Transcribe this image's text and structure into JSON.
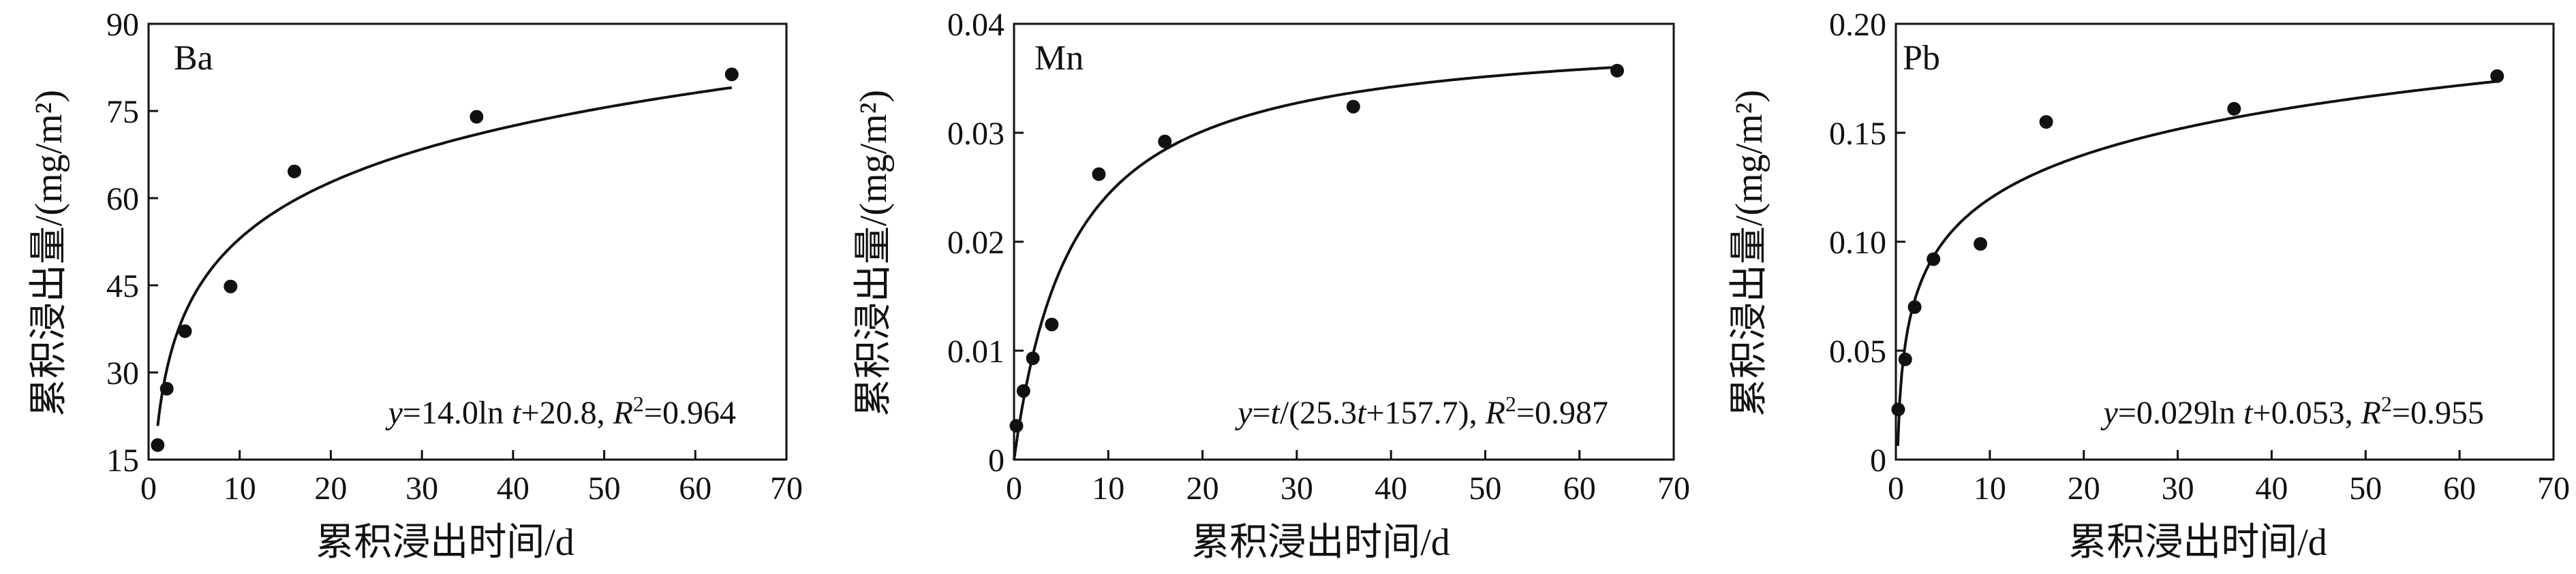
{
  "colors": {
    "ink": "#111111",
    "background": "#ffffff"
  },
  "chart_data": [
    {
      "type": "scatter",
      "panel_label": "Ba",
      "xlabel": "累积浸出时间/d",
      "ylabel": "累积浸出量/(mg/m²)",
      "xlim": [
        0,
        70
      ],
      "ylim": [
        15,
        90
      ],
      "xticks": [
        "0",
        "10",
        "20",
        "30",
        "40",
        "50",
        "60",
        "70"
      ],
      "xtick_values": [
        0,
        10,
        20,
        30,
        40,
        50,
        60,
        70
      ],
      "yticks": [
        "15",
        "30",
        "45",
        "60",
        "75",
        "90"
      ],
      "ytick_values": [
        15,
        30,
        45,
        60,
        75,
        90
      ],
      "points": {
        "x": [
          1,
          2,
          4,
          9,
          16,
          36,
          64
        ],
        "y": [
          17.5,
          27.2,
          37.1,
          44.8,
          64.6,
          74.0,
          81.3
        ]
      },
      "fit": {
        "model": "log",
        "a": 14.0,
        "b": 20.8,
        "x_range": [
          1,
          64
        ]
      },
      "equation": {
        "y": "y",
        "eq1": "=14.0ln ",
        "t": "t",
        "eq2": "+20.8, ",
        "R": "R",
        "sup": "2",
        "eq3": "=0.964"
      },
      "grid": false,
      "legend": "none"
    },
    {
      "type": "scatter",
      "panel_label": "Mn",
      "xlabel": "累积浸出时间/d",
      "ylabel": "累积浸出量/(mg/m²)",
      "xlim": [
        0,
        70
      ],
      "ylim": [
        0,
        0.04
      ],
      "xticks": [
        "0",
        "10",
        "20",
        "30",
        "40",
        "50",
        "60",
        "70"
      ],
      "xtick_values": [
        0,
        10,
        20,
        30,
        40,
        50,
        60,
        70
      ],
      "yticks": [
        "0",
        "0.01",
        "0.02",
        "0.03",
        "0.04"
      ],
      "ytick_values": [
        0,
        0.01,
        0.02,
        0.03,
        0.04
      ],
      "points": {
        "x": [
          0.25,
          1,
          2,
          4,
          9,
          16,
          36,
          64
        ],
        "y": [
          0.0031,
          0.0063,
          0.0093,
          0.0124,
          0.0262,
          0.0292,
          0.0324,
          0.0357
        ]
      },
      "fit": {
        "model": "hyperbolic",
        "a": 25.3,
        "b": 157.7,
        "x_range": [
          0,
          64
        ]
      },
      "equation": {
        "y": "y",
        "eq1": "=",
        "t": "t",
        "eq2": "/(25.3",
        "t2": "t",
        "eq2b": "+157.7), ",
        "R": "R",
        "sup": "2",
        "eq3": "=0.987"
      },
      "grid": false,
      "legend": "none"
    },
    {
      "type": "scatter",
      "panel_label": "Pb",
      "xlabel": "累积浸出时间/d",
      "ylabel": "累积浸出量/(mg/m²)",
      "xlim": [
        0,
        70
      ],
      "ylim": [
        0,
        0.2
      ],
      "xticks": [
        "0",
        "10",
        "20",
        "30",
        "40",
        "50",
        "60",
        "70"
      ],
      "xtick_values": [
        0,
        10,
        20,
        30,
        40,
        50,
        60,
        70
      ],
      "yticks": [
        "0",
        "0.05",
        "0.10",
        "0.15",
        "0.20"
      ],
      "ytick_values": [
        0,
        0.05,
        0.1,
        0.15,
        0.2
      ],
      "points": {
        "x": [
          0.25,
          1,
          2,
          4,
          9,
          16,
          36,
          64
        ],
        "y": [
          0.023,
          0.046,
          0.07,
          0.092,
          0.099,
          0.155,
          0.161,
          0.176
        ]
      },
      "fit": {
        "model": "log",
        "a": 0.029,
        "b": 0.053,
        "x_range": [
          0.2,
          64
        ]
      },
      "equation": {
        "y": "y",
        "eq1": "=0.029ln ",
        "t": "t",
        "eq2": "+0.053, ",
        "R": "R",
        "sup": "2",
        "eq3": "=0.955"
      },
      "grid": false,
      "legend": "none"
    }
  ]
}
